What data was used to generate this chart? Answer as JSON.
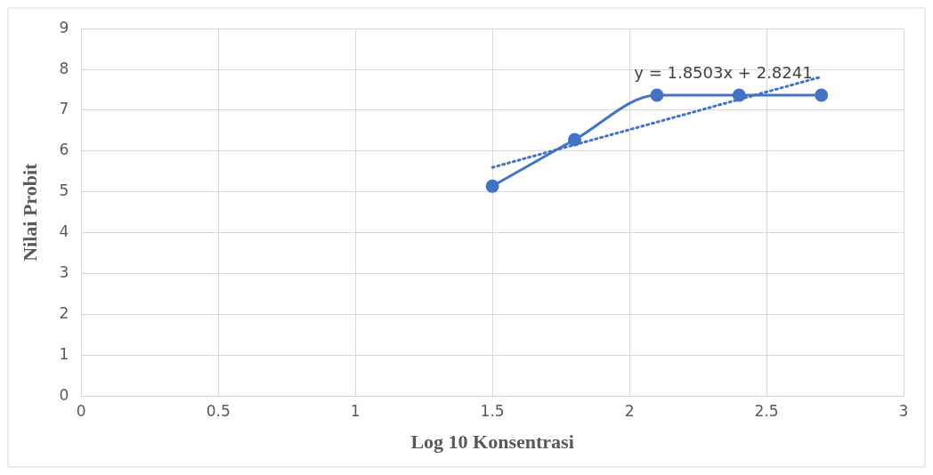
{
  "chart_data": {
    "type": "line",
    "xlabel": "Log 10 Konsentrasi",
    "ylabel": "Nilai Probit",
    "xlim": [
      0,
      3
    ],
    "xticks": [
      0,
      0.5,
      1,
      1.5,
      2,
      2.5,
      3
    ],
    "ylim": [
      0,
      9
    ],
    "yticks": [
      0,
      1,
      2,
      3,
      4,
      5,
      6,
      7,
      8,
      9
    ],
    "grid": true,
    "series": [
      {
        "type": "line",
        "color": "#4472c4",
        "x": [
          1.5,
          1.8,
          2.1,
          2.4,
          2.7
        ],
        "values": [
          5.14,
          6.28,
          7.37,
          7.37,
          7.37
        ],
        "marker": "circle",
        "line_style": "solid"
      },
      {
        "type": "line",
        "color": "#4472c4",
        "x": [
          1.5,
          2.7
        ],
        "values": [
          5.6,
          7.82
        ],
        "marker": "none",
        "line_style": "dotted"
      }
    ],
    "annotations": [
      "y = 1.8503x + 2.8241"
    ]
  }
}
